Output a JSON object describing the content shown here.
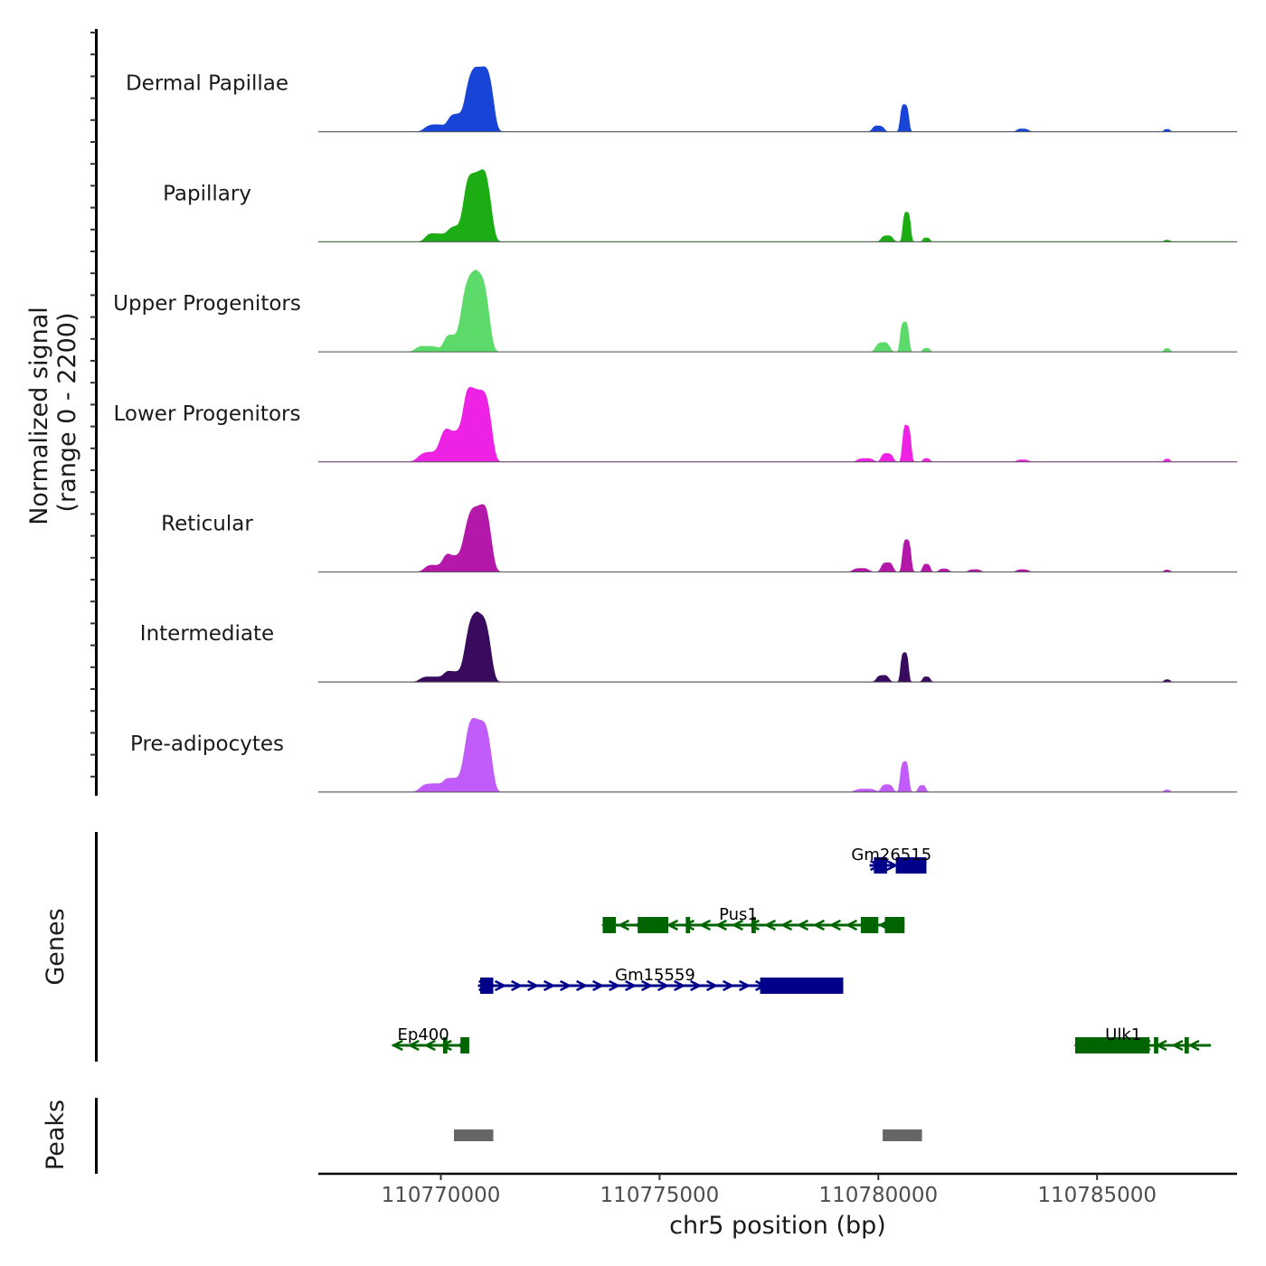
{
  "chart_data": {
    "type": "area",
    "title": "",
    "xlabel": "chr5 position (bp)",
    "ylabel": "Normalized signal",
    "ylabel_range": "(range 0 - 2200)",
    "xlim": [
      110767200,
      110788200
    ],
    "ylim": [
      0,
      2200
    ],
    "xticks": [
      110770000,
      110775000,
      110780000,
      110785000
    ],
    "xtick_labels": [
      "110770000",
      "110775000",
      "110780000",
      "110785000"
    ],
    "panel_labels": {
      "genes": "Genes",
      "peaks": "Peaks"
    },
    "tracks": [
      {
        "name": "Dermal Papillae",
        "color": "#1844D8",
        "peaks": [
          [
            110769900,
            180,
            300
          ],
          [
            110770400,
            480,
            250
          ],
          [
            110770900,
            1800,
            320
          ],
          [
            110780000,
            150,
            150
          ],
          [
            110780600,
            700,
            110
          ],
          [
            110783300,
            70,
            150
          ],
          [
            110786600,
            60,
            80
          ]
        ]
      },
      {
        "name": "Papillary",
        "color": "#1CAC14",
        "peaks": [
          [
            110769900,
            220,
            280
          ],
          [
            110770400,
            400,
            260
          ],
          [
            110770850,
            1900,
            330
          ],
          [
            110780200,
            160,
            150
          ],
          [
            110780650,
            820,
            100
          ],
          [
            110781100,
            100,
            90
          ],
          [
            110786600,
            40,
            80
          ]
        ]
      },
      {
        "name": "Upper Progenitors",
        "color": "#5CDB6B",
        "peaks": [
          [
            110769700,
            150,
            300
          ],
          [
            110770300,
            450,
            260
          ],
          [
            110770800,
            2100,
            330
          ],
          [
            110780100,
            240,
            180
          ],
          [
            110780600,
            820,
            110
          ],
          [
            110781100,
            100,
            90
          ],
          [
            110786600,
            90,
            80
          ]
        ]
      },
      {
        "name": "Lower Progenitors",
        "color": "#EE22E4",
        "peaks": [
          [
            110769800,
            260,
            350
          ],
          [
            110770300,
            850,
            320
          ],
          [
            110770850,
            2000,
            330
          ],
          [
            110779700,
            90,
            200
          ],
          [
            110780200,
            230,
            150
          ],
          [
            110780650,
            950,
            110
          ],
          [
            110781100,
            90,
            90
          ],
          [
            110783300,
            50,
            150
          ],
          [
            110786600,
            70,
            80
          ]
        ]
      },
      {
        "name": "Reticular",
        "color": "#B418A8",
        "peaks": [
          [
            110769900,
            180,
            300
          ],
          [
            110770300,
            420,
            260
          ],
          [
            110770850,
            1800,
            330
          ],
          [
            110779600,
            90,
            200
          ],
          [
            110780200,
            250,
            150
          ],
          [
            110780650,
            890,
            110
          ],
          [
            110781100,
            200,
            100
          ],
          [
            110781500,
            80,
            120
          ],
          [
            110782200,
            60,
            150
          ],
          [
            110783300,
            60,
            150
          ],
          [
            110786600,
            50,
            80
          ]
        ]
      },
      {
        "name": "Intermediate",
        "color": "#3A0A5E",
        "peaks": [
          [
            110769800,
            140,
            300
          ],
          [
            110770300,
            280,
            250
          ],
          [
            110770850,
            1800,
            320
          ],
          [
            110780100,
            170,
            160
          ],
          [
            110780600,
            810,
            100
          ],
          [
            110781100,
            140,
            100
          ],
          [
            110786600,
            60,
            80
          ]
        ]
      },
      {
        "name": "Pre-adipocytes",
        "color": "#C15CFA",
        "peaks": [
          [
            110769800,
            220,
            300
          ],
          [
            110770300,
            380,
            250
          ],
          [
            110770850,
            2000,
            330
          ],
          [
            110779700,
            80,
            250
          ],
          [
            110780200,
            200,
            150
          ],
          [
            110780600,
            790,
            110
          ],
          [
            110781000,
            180,
            100
          ],
          [
            110786600,
            50,
            80
          ]
        ]
      }
    ],
    "genes": [
      {
        "name": "Gm26515",
        "strand": "+",
        "color": "#00008B",
        "start": 110779800,
        "end": 110781100,
        "label_x": 110780300,
        "exons": [
          [
            110779900,
            110780200
          ],
          [
            110780400,
            110781100
          ]
        ]
      },
      {
        "name": "Pus1",
        "strand": "-",
        "color": "#006400",
        "start": 110773700,
        "end": 110780600,
        "label_x": 110776800,
        "exons": [
          [
            110773700,
            110774000
          ],
          [
            110774500,
            110775200
          ],
          [
            110775600,
            110775700
          ],
          [
            110777100,
            110777200
          ],
          [
            110779600,
            110780000
          ],
          [
            110780150,
            110780600
          ]
        ]
      },
      {
        "name": "Gm15559",
        "strand": "+",
        "color": "#00008B",
        "start": 110770850,
        "end": 110779200,
        "label_x": 110774900,
        "exons": [
          [
            110770900,
            110771200
          ],
          [
            110777300,
            110779200
          ]
        ]
      },
      {
        "name": "Ep400",
        "strand": "-",
        "color": "#006400",
        "start": 110768900,
        "end": 110770650,
        "label_x": 110769600,
        "exons": [
          [
            110770050,
            110770150
          ],
          [
            110770450,
            110770650
          ]
        ]
      },
      {
        "name": "Ulk1",
        "strand": "-",
        "color": "#006400",
        "start": 110784500,
        "end": 110787600,
        "label_x": 110785600,
        "exons": [
          [
            110784500,
            110786200
          ],
          [
            110786300,
            110786400
          ],
          [
            110787000,
            110787100
          ]
        ]
      }
    ],
    "peak_regions": [
      [
        110770300,
        110771200
      ],
      [
        110780100,
        110781000
      ]
    ],
    "peak_color": "#666666"
  }
}
